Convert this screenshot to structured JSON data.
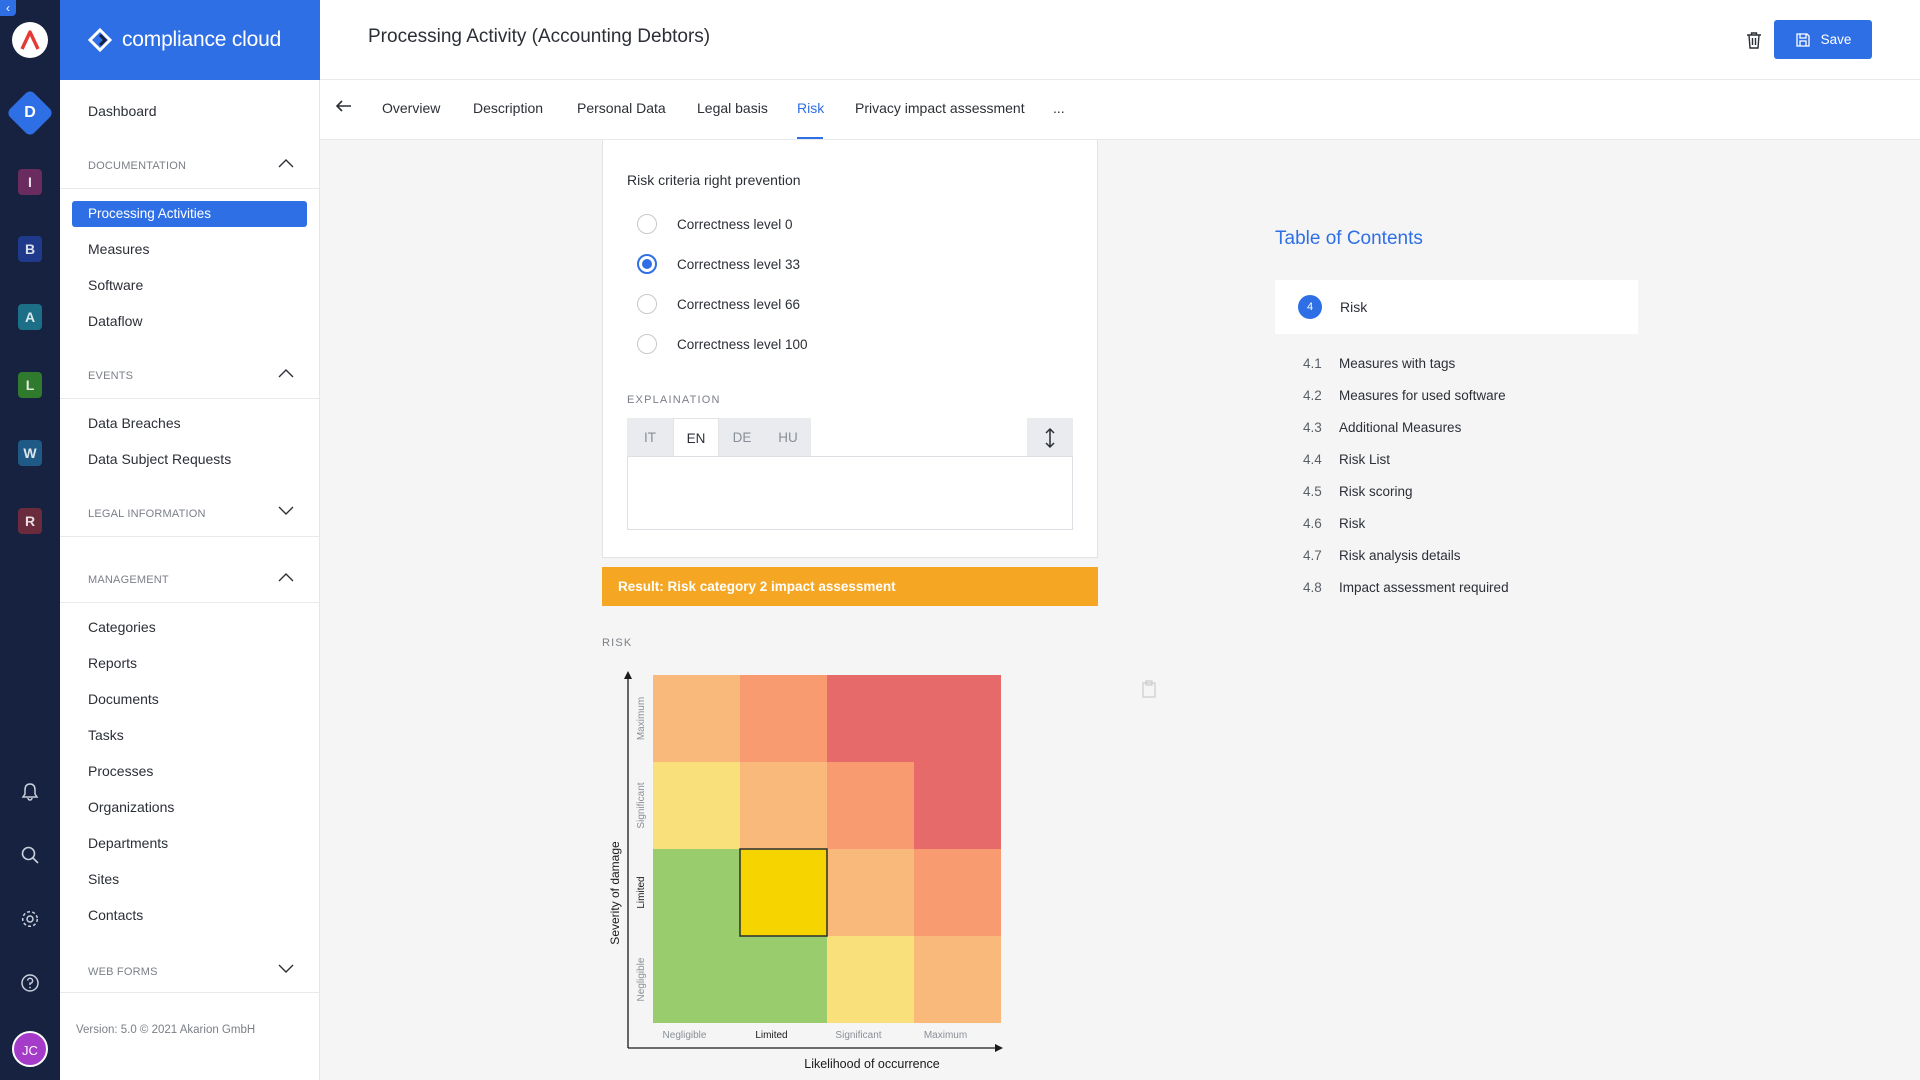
{
  "app": {
    "brand": "compliance cloud",
    "page_title": "Processing Activity (Accounting Debtors)",
    "save_label": "Save"
  },
  "rail": {
    "back_glyph": "‹",
    "main_tile": "D",
    "tiles": [
      {
        "letter": "I",
        "color": "#6a2c5f"
      },
      {
        "letter": "B",
        "color": "#1f3a8a"
      },
      {
        "letter": "A",
        "color": "#1c6f86"
      },
      {
        "letter": "L",
        "color": "#2f7a2c"
      },
      {
        "letter": "W",
        "color": "#1f5a86"
      },
      {
        "letter": "R",
        "color": "#6a2c3c"
      }
    ],
    "avatar": "JC"
  },
  "sidebar": {
    "dashboard": "Dashboard",
    "sections": {
      "documentation": "DOCUMENTATION",
      "events": "EVENTS",
      "legal": "LEGAL INFORMATION",
      "management": "MANAGEMENT",
      "webforms": "WEB FORMS"
    },
    "documentation_items": [
      "Processing Activities",
      "Measures",
      "Software",
      "Dataflow"
    ],
    "events_items": [
      "Data Breaches",
      "Data Subject Requests"
    ],
    "management_items": [
      "Categories",
      "Reports",
      "Documents",
      "Tasks",
      "Processes",
      "Organizations",
      "Departments",
      "Sites",
      "Contacts"
    ],
    "version": "Version: 5.0 © 2021 Akarion GmbH"
  },
  "tabs": {
    "items": [
      "Overview",
      "Description",
      "Personal Data",
      "Legal basis",
      "Risk",
      "Privacy impact assessment",
      "..."
    ],
    "active": "Risk"
  },
  "form": {
    "criteria_label": "Risk criteria right prevention",
    "options": [
      "Correctness level 0",
      "Correctness level 33",
      "Correctness level 66",
      "Correctness level 100"
    ],
    "selected_option": "Correctness level 33",
    "explanation_label": "EXPLAINATION",
    "languages": [
      "IT",
      "EN",
      "DE",
      "HU"
    ],
    "active_language": "EN",
    "explanation_text": ""
  },
  "result": {
    "text": "Result: Risk category 2 impact assessment",
    "color": "#f5a623"
  },
  "risk_matrix": {
    "section_label": "RISK",
    "y_axis_title": "Severity of damage",
    "x_axis_title": "Likelihood of occurrence",
    "y_levels": [
      "Negligible",
      "Limited",
      "Significant",
      "Maximum"
    ],
    "x_levels": [
      "Negligible",
      "Limited",
      "Significant",
      "Maximum"
    ],
    "highlighted": {
      "likelihood": "Limited",
      "severity": "Limited"
    },
    "cell_colors_top_to_bottom": [
      [
        "#f9b97a",
        "#f99b70",
        "#e66a6a",
        "#e66a6a"
      ],
      [
        "#f9e07a",
        "#f9b97a",
        "#f99b70",
        "#e66a6a"
      ],
      [
        "#99cc6d",
        "#f5d400",
        "#f9b97a",
        "#f99b70"
      ],
      [
        "#99cc6d",
        "#99cc6d",
        "#f9e07a",
        "#f9b97a"
      ]
    ]
  },
  "toc": {
    "title": "Table of Contents",
    "current_number": "4",
    "current_label": "Risk",
    "items": [
      {
        "num": "4.1",
        "label": "Measures with tags"
      },
      {
        "num": "4.2",
        "label": "Measures for used software"
      },
      {
        "num": "4.3",
        "label": "Additional Measures"
      },
      {
        "num": "4.4",
        "label": "Risk List"
      },
      {
        "num": "4.5",
        "label": "Risk scoring"
      },
      {
        "num": "4.6",
        "label": "Risk"
      },
      {
        "num": "4.7",
        "label": "Risk analysis details"
      },
      {
        "num": "4.8",
        "label": "Impact assessment required"
      }
    ]
  },
  "colors": {
    "accent": "#2f6fe6",
    "rail_bg": "#16223f"
  }
}
